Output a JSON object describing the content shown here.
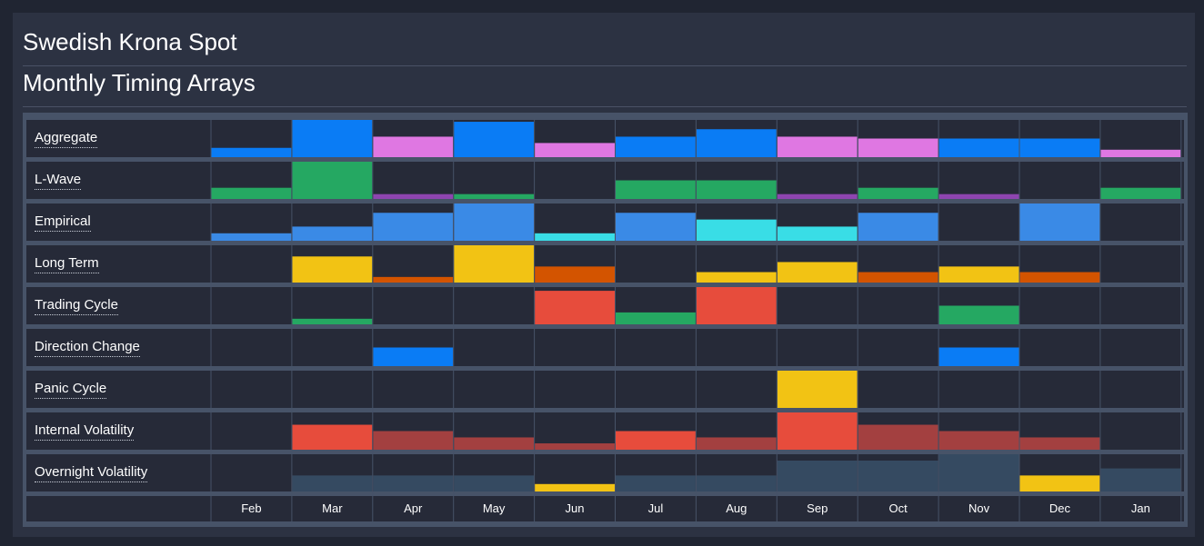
{
  "header": {
    "title": "Swedish Krona Spot",
    "subtitle": "Monthly Timing Arrays"
  },
  "colors": {
    "blue": "#0a7cf5",
    "pink": "#df77e2",
    "green": "#25a862",
    "purple": "#8e45b0",
    "lightblue": "#3a8ae6",
    "cyan": "#39dde6",
    "yellow": "#f2c314",
    "orange": "#d35400",
    "red": "#e74c3c",
    "darkred": "#a34040",
    "slate": "#354a61",
    "cell_bg": "#262a38",
    "grid_line": "#475368"
  },
  "chart_data": {
    "type": "heatmap",
    "title": "Monthly Timing Arrays",
    "months": [
      "Feb",
      "Mar",
      "Apr",
      "May",
      "Jun",
      "Jul",
      "Aug",
      "Sep",
      "Oct",
      "Nov",
      "Dec",
      "Jan"
    ],
    "rows": [
      {
        "label": "Aggregate",
        "cells": [
          {
            "level": 0.25,
            "color": "blue"
          },
          {
            "level": 1.0,
            "color": "blue"
          },
          {
            "level": 0.55,
            "color": "pink"
          },
          {
            "level": 0.95,
            "color": "blue"
          },
          {
            "level": 0.38,
            "color": "pink"
          },
          {
            "level": 0.55,
            "color": "blue"
          },
          {
            "level": 0.75,
            "color": "blue"
          },
          {
            "level": 0.55,
            "color": "pink"
          },
          {
            "level": 0.5,
            "color": "pink"
          },
          {
            "level": 0.5,
            "color": "blue"
          },
          {
            "level": 0.5,
            "color": "blue"
          },
          {
            "level": 0.2,
            "color": "pink"
          }
        ]
      },
      {
        "label": "L-Wave",
        "cells": [
          {
            "level": 0.3,
            "color": "green"
          },
          {
            "level": 1.0,
            "color": "green"
          },
          {
            "level": 0.13,
            "color": "purple"
          },
          {
            "level": 0.13,
            "color": "green"
          },
          {
            "level": 0,
            "color": "green"
          },
          {
            "level": 0.5,
            "color": "green"
          },
          {
            "level": 0.5,
            "color": "green"
          },
          {
            "level": 0.13,
            "color": "purple"
          },
          {
            "level": 0.3,
            "color": "green"
          },
          {
            "level": 0.13,
            "color": "purple"
          },
          {
            "level": 0,
            "color": "green"
          },
          {
            "level": 0.3,
            "color": "green"
          }
        ]
      },
      {
        "label": "Empirical",
        "cells": [
          {
            "level": 0.2,
            "color": "lightblue"
          },
          {
            "level": 0.38,
            "color": "lightblue"
          },
          {
            "level": 0.75,
            "color": "lightblue"
          },
          {
            "level": 1.0,
            "color": "lightblue"
          },
          {
            "level": 0.2,
            "color": "cyan"
          },
          {
            "level": 0.75,
            "color": "lightblue"
          },
          {
            "level": 0.57,
            "color": "cyan"
          },
          {
            "level": 0.38,
            "color": "cyan"
          },
          {
            "level": 0.75,
            "color": "lightblue"
          },
          {
            "level": 0,
            "color": "lightblue"
          },
          {
            "level": 1.0,
            "color": "lightblue"
          },
          {
            "level": 0,
            "color": "lightblue"
          }
        ]
      },
      {
        "label": "Long Term",
        "cells": [
          {
            "level": 0,
            "color": "yellow"
          },
          {
            "level": 0.7,
            "color": "yellow"
          },
          {
            "level": 0.15,
            "color": "orange"
          },
          {
            "level": 1.0,
            "color": "yellow"
          },
          {
            "level": 0.43,
            "color": "orange"
          },
          {
            "level": 0,
            "color": "yellow"
          },
          {
            "level": 0.28,
            "color": "yellow"
          },
          {
            "level": 0.55,
            "color": "yellow"
          },
          {
            "level": 0.28,
            "color": "orange"
          },
          {
            "level": 0.43,
            "color": "yellow"
          },
          {
            "level": 0.28,
            "color": "orange"
          },
          {
            "level": 0,
            "color": "yellow"
          }
        ]
      },
      {
        "label": "Trading Cycle",
        "cells": [
          {
            "level": 0,
            "color": "green"
          },
          {
            "level": 0.15,
            "color": "green"
          },
          {
            "level": 0,
            "color": "green"
          },
          {
            "level": 0,
            "color": "green"
          },
          {
            "level": 0.9,
            "color": "red"
          },
          {
            "level": 0.32,
            "color": "green"
          },
          {
            "level": 1.0,
            "color": "red"
          },
          {
            "level": 0,
            "color": "green"
          },
          {
            "level": 0,
            "color": "green"
          },
          {
            "level": 0.5,
            "color": "green"
          },
          {
            "level": 0,
            "color": "green"
          },
          {
            "level": 0,
            "color": "green"
          }
        ]
      },
      {
        "label": "Direction Change",
        "cells": [
          {
            "level": 0,
            "color": "blue"
          },
          {
            "level": 0,
            "color": "blue"
          },
          {
            "level": 0.5,
            "color": "blue"
          },
          {
            "level": 0,
            "color": "blue"
          },
          {
            "level": 0,
            "color": "blue"
          },
          {
            "level": 0,
            "color": "blue"
          },
          {
            "level": 0,
            "color": "blue"
          },
          {
            "level": 0,
            "color": "blue"
          },
          {
            "level": 0,
            "color": "blue"
          },
          {
            "level": 0.5,
            "color": "blue"
          },
          {
            "level": 0,
            "color": "blue"
          },
          {
            "level": 0,
            "color": "blue"
          }
        ]
      },
      {
        "label": "Panic Cycle",
        "cells": [
          {
            "level": 0,
            "color": "yellow"
          },
          {
            "level": 0,
            "color": "yellow"
          },
          {
            "level": 0,
            "color": "yellow"
          },
          {
            "level": 0,
            "color": "yellow"
          },
          {
            "level": 0,
            "color": "yellow"
          },
          {
            "level": 0,
            "color": "yellow"
          },
          {
            "level": 0,
            "color": "yellow"
          },
          {
            "level": 1.0,
            "color": "yellow"
          },
          {
            "level": 0,
            "color": "yellow"
          },
          {
            "level": 0,
            "color": "yellow"
          },
          {
            "level": 0,
            "color": "yellow"
          },
          {
            "level": 0,
            "color": "yellow"
          }
        ]
      },
      {
        "label": "Internal Volatility",
        "cells": [
          {
            "level": 0,
            "color": "red"
          },
          {
            "level": 0.67,
            "color": "red"
          },
          {
            "level": 0.5,
            "color": "darkred"
          },
          {
            "level": 0.33,
            "color": "darkred"
          },
          {
            "level": 0.17,
            "color": "darkred"
          },
          {
            "level": 0.5,
            "color": "red"
          },
          {
            "level": 0.33,
            "color": "darkred"
          },
          {
            "level": 1.0,
            "color": "red"
          },
          {
            "level": 0.67,
            "color": "darkred"
          },
          {
            "level": 0.5,
            "color": "darkred"
          },
          {
            "level": 0.33,
            "color": "darkred"
          },
          {
            "level": 0,
            "color": "red"
          }
        ]
      },
      {
        "label": "Overnight Volatility",
        "cells": [
          {
            "level": 0,
            "color": "slate"
          },
          {
            "level": 0.43,
            "color": "slate"
          },
          {
            "level": 0.43,
            "color": "slate"
          },
          {
            "level": 0.43,
            "color": "slate"
          },
          {
            "level": 0.2,
            "color": "yellow"
          },
          {
            "level": 0.43,
            "color": "slate"
          },
          {
            "level": 0.43,
            "color": "slate"
          },
          {
            "level": 0.83,
            "color": "slate"
          },
          {
            "level": 0.83,
            "color": "slate"
          },
          {
            "level": 1.0,
            "color": "slate"
          },
          {
            "level": 0.43,
            "color": "yellow"
          },
          {
            "level": 0.62,
            "color": "slate"
          }
        ]
      }
    ]
  }
}
